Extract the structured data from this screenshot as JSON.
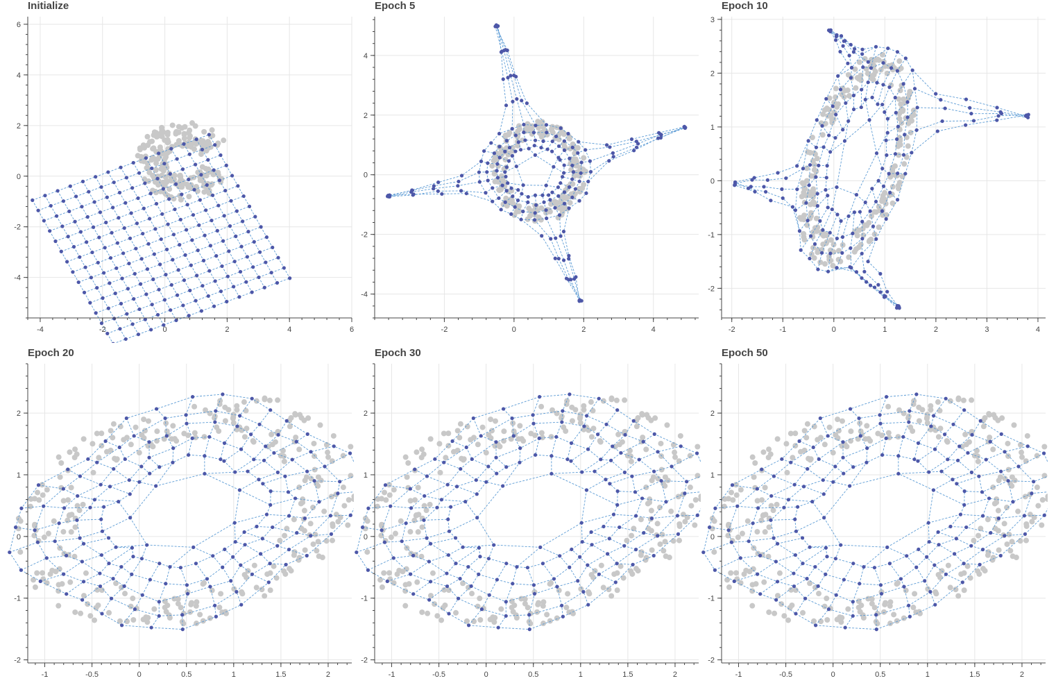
{
  "colors": {
    "node": "#4d57a8",
    "edge": "#5b9bd5",
    "data": "#c8c8c8",
    "grid": "#e6e6e6",
    "axis": "#444444"
  },
  "chart_data": [
    {
      "type": "scatter",
      "title": "Initialize",
      "xlim": [
        -4.4,
        6.0
      ],
      "ylim": [
        -5.6,
        6.3
      ],
      "xticks": [
        -4,
        -2,
        0,
        2,
        4,
        6
      ],
      "xtick_labels": [
        "-4",
        "-2",
        "0",
        "2",
        "4",
        "6"
      ],
      "yticks": [
        -4,
        -2,
        0,
        2,
        4,
        6
      ],
      "ytick_labels": [
        "-4",
        "-2",
        "0",
        "2",
        "4",
        "6"
      ],
      "grid": true,
      "som": {
        "mode": "grid",
        "origin": [
          -4.25,
          -0.95
        ],
        "u": [
          0.405,
          0.185
        ],
        "v": [
          0.185,
          -0.405
        ],
        "n": 15
      },
      "data_cloud": {
        "mode": "blob",
        "cx": 0.6,
        "cy": 0.6,
        "rx": 1.2,
        "ry": 1.2,
        "r_inner": 0.6,
        "r_outer": 1.6,
        "count": 220,
        "start": 0.4,
        "end": 6.0
      }
    },
    {
      "type": "scatter",
      "title": "Epoch 5",
      "xlim": [
        -4.0,
        5.3
      ],
      "ylim": [
        -4.8,
        5.3
      ],
      "xticks": [
        -2,
        0,
        2,
        4
      ],
      "xtick_labels": [
        "-2",
        "0",
        "2",
        "4"
      ],
      "yticks": [
        -4,
        -2,
        0,
        2,
        4
      ],
      "ytick_labels": [
        "-4",
        "-2",
        "0",
        "2",
        "4"
      ],
      "grid": true,
      "som": {
        "mode": "star",
        "cx": 0.6,
        "cy": 0.1,
        "ring_r": 1.6,
        "n_rings": 4,
        "n_angle": 28,
        "arms": [
          [
            -0.5,
            5.0
          ],
          [
            4.9,
            1.6
          ],
          [
            1.9,
            -4.2
          ],
          [
            -3.6,
            -0.7
          ]
        ]
      },
      "data_cloud": {
        "mode": "ring",
        "cx": 0.7,
        "cy": 0.1,
        "rx": 1.3,
        "ry": 1.6,
        "width": 0.4,
        "count": 200
      }
    },
    {
      "type": "scatter",
      "title": "Epoch 10",
      "xlim": [
        -2.2,
        4.15
      ],
      "ylim": [
        -2.55,
        3.05
      ],
      "xticks": [
        -2,
        -1,
        0,
        1,
        2,
        3,
        4
      ],
      "xtick_labels": [
        "-2",
        "-1",
        "0",
        "1",
        "2",
        "3",
        "4"
      ],
      "yticks": [
        -2,
        -1,
        0,
        1,
        2,
        3
      ],
      "ytick_labels": [
        "-2",
        "-1",
        "0",
        "1",
        "2",
        "3"
      ],
      "grid": true,
      "som": {
        "mode": "skew",
        "cx": 0.45,
        "cy": 0.4,
        "rx": 1.0,
        "ry": 2.2,
        "rot": -0.32,
        "n_rings": 4,
        "n_angle": 30,
        "arms": [
          [
            -1.95,
            -0.05
          ],
          [
            3.8,
            1.2
          ],
          [
            1.25,
            -2.35
          ],
          [
            -0.1,
            2.8
          ]
        ]
      },
      "data_cloud": {
        "mode": "ring",
        "cx": 0.45,
        "cy": 0.4,
        "rx": 0.95,
        "ry": 2.05,
        "width": 0.3,
        "rot": -0.32,
        "count": 240
      }
    },
    {
      "type": "scatter",
      "title": "Epoch 20",
      "xlim": [
        -1.18,
        2.25
      ],
      "ylim": [
        -2.05,
        2.8
      ],
      "xticks": [
        -1,
        -0.5,
        0,
        0.5,
        1,
        1.5,
        2
      ],
      "xtick_labels": [
        "-1",
        "-0.5",
        "0",
        "0.5",
        "1",
        "1.5",
        "2"
      ],
      "yticks": [
        -2,
        -1,
        0,
        1,
        2
      ],
      "ytick_labels": [
        "-2",
        "-1",
        "0",
        "1",
        "2"
      ],
      "grid": true,
      "som": {
        "mode": "rounded",
        "cx": 0.5,
        "cy": 0.4,
        "rx": 1.5,
        "ry": 1.95,
        "rot": -0.72,
        "n_rings": 5,
        "n_angle": 34
      },
      "data_cloud": {
        "mode": "ring",
        "cx": 0.5,
        "cy": 0.4,
        "rx": 1.5,
        "ry": 1.95,
        "width": 0.45,
        "rot": -0.72,
        "count": 300
      }
    },
    {
      "type": "scatter",
      "title": "Epoch 30",
      "xlim": [
        -1.18,
        2.25
      ],
      "ylim": [
        -2.05,
        2.8
      ],
      "xticks": [
        -1,
        -0.5,
        0,
        0.5,
        1,
        1.5,
        2
      ],
      "xtick_labels": [
        "-1",
        "-0.5",
        "0",
        "0.5",
        "1",
        "1.5",
        "2"
      ],
      "yticks": [
        -2,
        -1,
        0,
        1,
        2
      ],
      "ytick_labels": [
        "-2",
        "-1",
        "0",
        "1",
        "2"
      ],
      "grid": true,
      "som": {
        "mode": "rounded",
        "cx": 0.5,
        "cy": 0.4,
        "rx": 1.5,
        "ry": 1.95,
        "rot": -0.72,
        "n_rings": 5,
        "n_angle": 34
      },
      "data_cloud": {
        "mode": "ring",
        "cx": 0.5,
        "cy": 0.4,
        "rx": 1.5,
        "ry": 1.95,
        "width": 0.45,
        "rot": -0.72,
        "count": 300
      }
    },
    {
      "type": "scatter",
      "title": "Epoch 50",
      "xlim": [
        -1.18,
        2.25
      ],
      "ylim": [
        -2.05,
        2.8
      ],
      "xticks": [
        -1,
        -0.5,
        0,
        0.5,
        1,
        1.5,
        2
      ],
      "xtick_labels": [
        "-1",
        "-0.5",
        "0",
        "0.5",
        "1",
        "1.5",
        "2"
      ],
      "yticks": [
        -2,
        -1,
        0,
        1,
        2
      ],
      "ytick_labels": [
        "-2",
        "-1",
        "0",
        "1",
        "2"
      ],
      "grid": true,
      "som": {
        "mode": "rounded",
        "cx": 0.5,
        "cy": 0.4,
        "rx": 1.5,
        "ry": 1.95,
        "rot": -0.72,
        "n_rings": 5,
        "n_angle": 34
      },
      "data_cloud": {
        "mode": "ring",
        "cx": 0.5,
        "cy": 0.4,
        "rx": 1.5,
        "ry": 1.95,
        "width": 0.45,
        "rot": -0.72,
        "count": 300
      }
    }
  ]
}
